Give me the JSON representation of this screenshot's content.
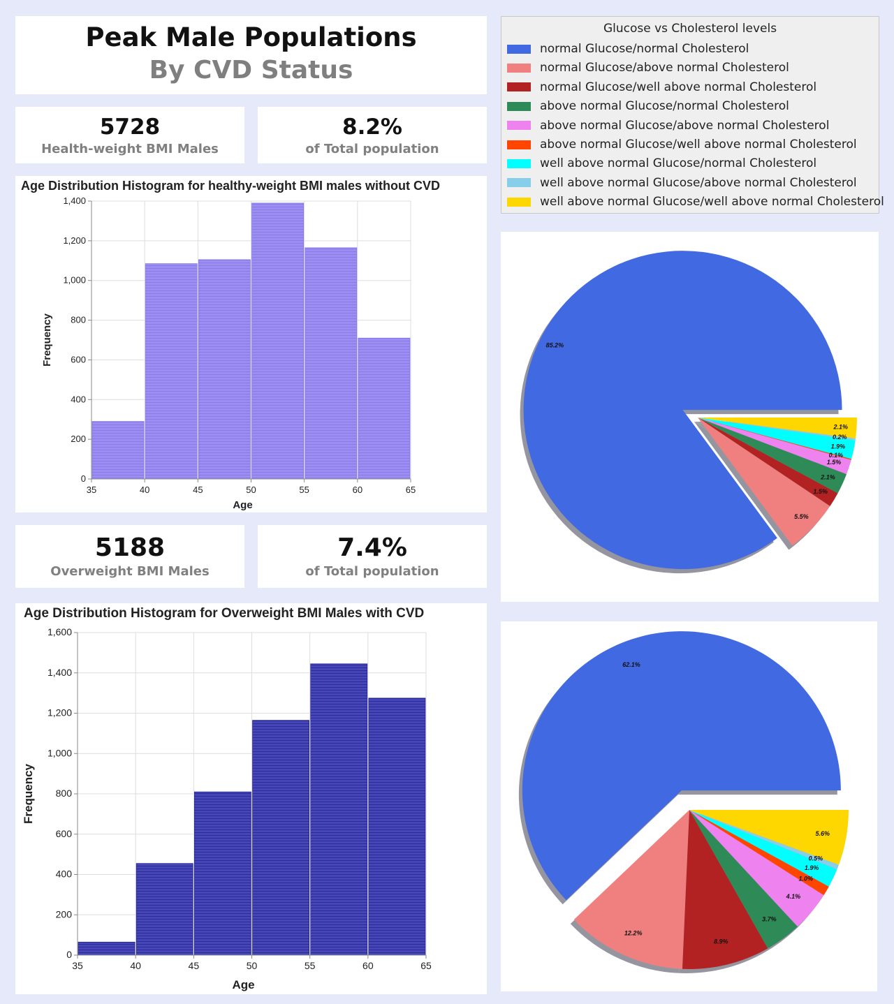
{
  "header": {
    "title": "Peak Male Populations",
    "subtitle": "By CVD Status"
  },
  "kpis": {
    "healthy": {
      "value": "5728",
      "label": "Health-weight BMI Males"
    },
    "healthy_pct": {
      "value": "8.2%",
      "label": "of Total population"
    },
    "overweight": {
      "value": "5188",
      "label": "Overweight BMI Males"
    },
    "overweight_pct": {
      "value": "7.4%",
      "label": "of Total population"
    }
  },
  "legend": {
    "title": "Glucose vs Cholesterol levels",
    "items": [
      {
        "label": "normal Glucose/normal Cholesterol",
        "color": "#4169e1"
      },
      {
        "label": "normal Glucose/above normal Cholesterol",
        "color": "#f08080"
      },
      {
        "label": "normal Glucose/well above normal Cholesterol",
        "color": "#b22222"
      },
      {
        "label": "above normal Glucose/normal Cholesterol",
        "color": "#2e8b57"
      },
      {
        "label": "above normal Glucose/above normal Cholesterol",
        "color": "#ee82ee"
      },
      {
        "label": "above normal Glucose/well above normal Cholesterol",
        "color": "#ff4500"
      },
      {
        "label": "well above normal Glucose/normal Cholesterol",
        "color": "#00ffff"
      },
      {
        "label": "well above normal Glucose/above normal Cholesterol",
        "color": "#87ceeb"
      },
      {
        "label": "well above normal Glucose/well above normal Cholesterol",
        "color": "#ffd700"
      }
    ]
  },
  "chart_data": [
    {
      "type": "bar",
      "title": "Age Distribution Histogram for healthy-weight BMI males without CVD",
      "xlabel": "Age",
      "ylabel": "Frequency",
      "bin_edges": [
        35,
        40,
        45,
        50,
        55,
        60,
        65
      ],
      "values": [
        290,
        1085,
        1105,
        1390,
        1165,
        710
      ],
      "ylim": [
        0,
        1400
      ],
      "yticks": [
        0,
        200,
        400,
        600,
        800,
        1000,
        1200,
        1400
      ],
      "ytick_labels": [
        "0",
        "200",
        "400",
        "600",
        "800",
        "1,000",
        "1,200",
        "1,400"
      ],
      "xticks": [
        "35",
        "40",
        "45",
        "50",
        "55",
        "60",
        "65"
      ],
      "color": "#9c8ef0",
      "stripe": "#7a68e6",
      "grid": true
    },
    {
      "type": "bar",
      "title": "Age Distribution Histogram for Overweight BMI Males with CVD",
      "xlabel": "Age",
      "ylabel": "Frequency",
      "bin_edges": [
        35,
        40,
        45,
        50,
        55,
        60,
        65
      ],
      "values": [
        65,
        455,
        810,
        1165,
        1445,
        1275
      ],
      "ylim": [
        0,
        1600
      ],
      "yticks": [
        0,
        200,
        400,
        600,
        800,
        1000,
        1200,
        1400,
        1600
      ],
      "ytick_labels": [
        "0",
        "200",
        "400",
        "600",
        "800",
        "1,000",
        "1,200",
        "1,400",
        "1,600"
      ],
      "xticks": [
        "35",
        "40",
        "45",
        "50",
        "55",
        "60",
        "65"
      ],
      "color": "#4646b4",
      "stripe": "#12128c",
      "grid": true
    },
    {
      "type": "pie",
      "labels": [
        "normal Glucose/normal Cholesterol",
        "normal Glucose/above normal Cholesterol",
        "normal Glucose/well above normal Cholesterol",
        "above normal Glucose/normal Cholesterol",
        "above normal Glucose/above normal Cholesterol",
        "above normal Glucose/well above normal Cholesterol",
        "well above normal Glucose/normal Cholesterol",
        "well above normal Glucose/above normal Cholesterol",
        "well above normal Glucose/well above normal Cholesterol"
      ],
      "values": [
        85.2,
        5.5,
        1.5,
        2.1,
        1.5,
        0.1,
        1.9,
        0.2,
        2.1
      ],
      "value_labels": [
        "85.2%",
        "5.5%",
        "1.5%",
        "2.1%",
        "1.5%",
        "0.1%",
        "1.9%",
        "0.2%",
        "2.1%"
      ],
      "shadow": true,
      "explode_first": true
    },
    {
      "type": "pie",
      "labels": [
        "normal Glucose/normal Cholesterol",
        "normal Glucose/above normal Cholesterol",
        "normal Glucose/well above normal Cholesterol",
        "above normal Glucose/normal Cholesterol",
        "above normal Glucose/above normal Cholesterol",
        "above normal Glucose/well above normal Cholesterol",
        "well above normal Glucose/normal Cholesterol",
        "well above normal Glucose/above normal Cholesterol",
        "well above normal Glucose/well above normal Cholesterol"
      ],
      "values": [
        62.1,
        12.2,
        8.9,
        3.7,
        4.1,
        1.0,
        1.9,
        0.5,
        5.6
      ],
      "value_labels": [
        "62.1%",
        "12.2%",
        "8.9%",
        "3.7%",
        "4.1%",
        "1.0%",
        "1.9%",
        "0.5%",
        "5.6%"
      ],
      "shadow": true,
      "explode_first": true
    }
  ]
}
